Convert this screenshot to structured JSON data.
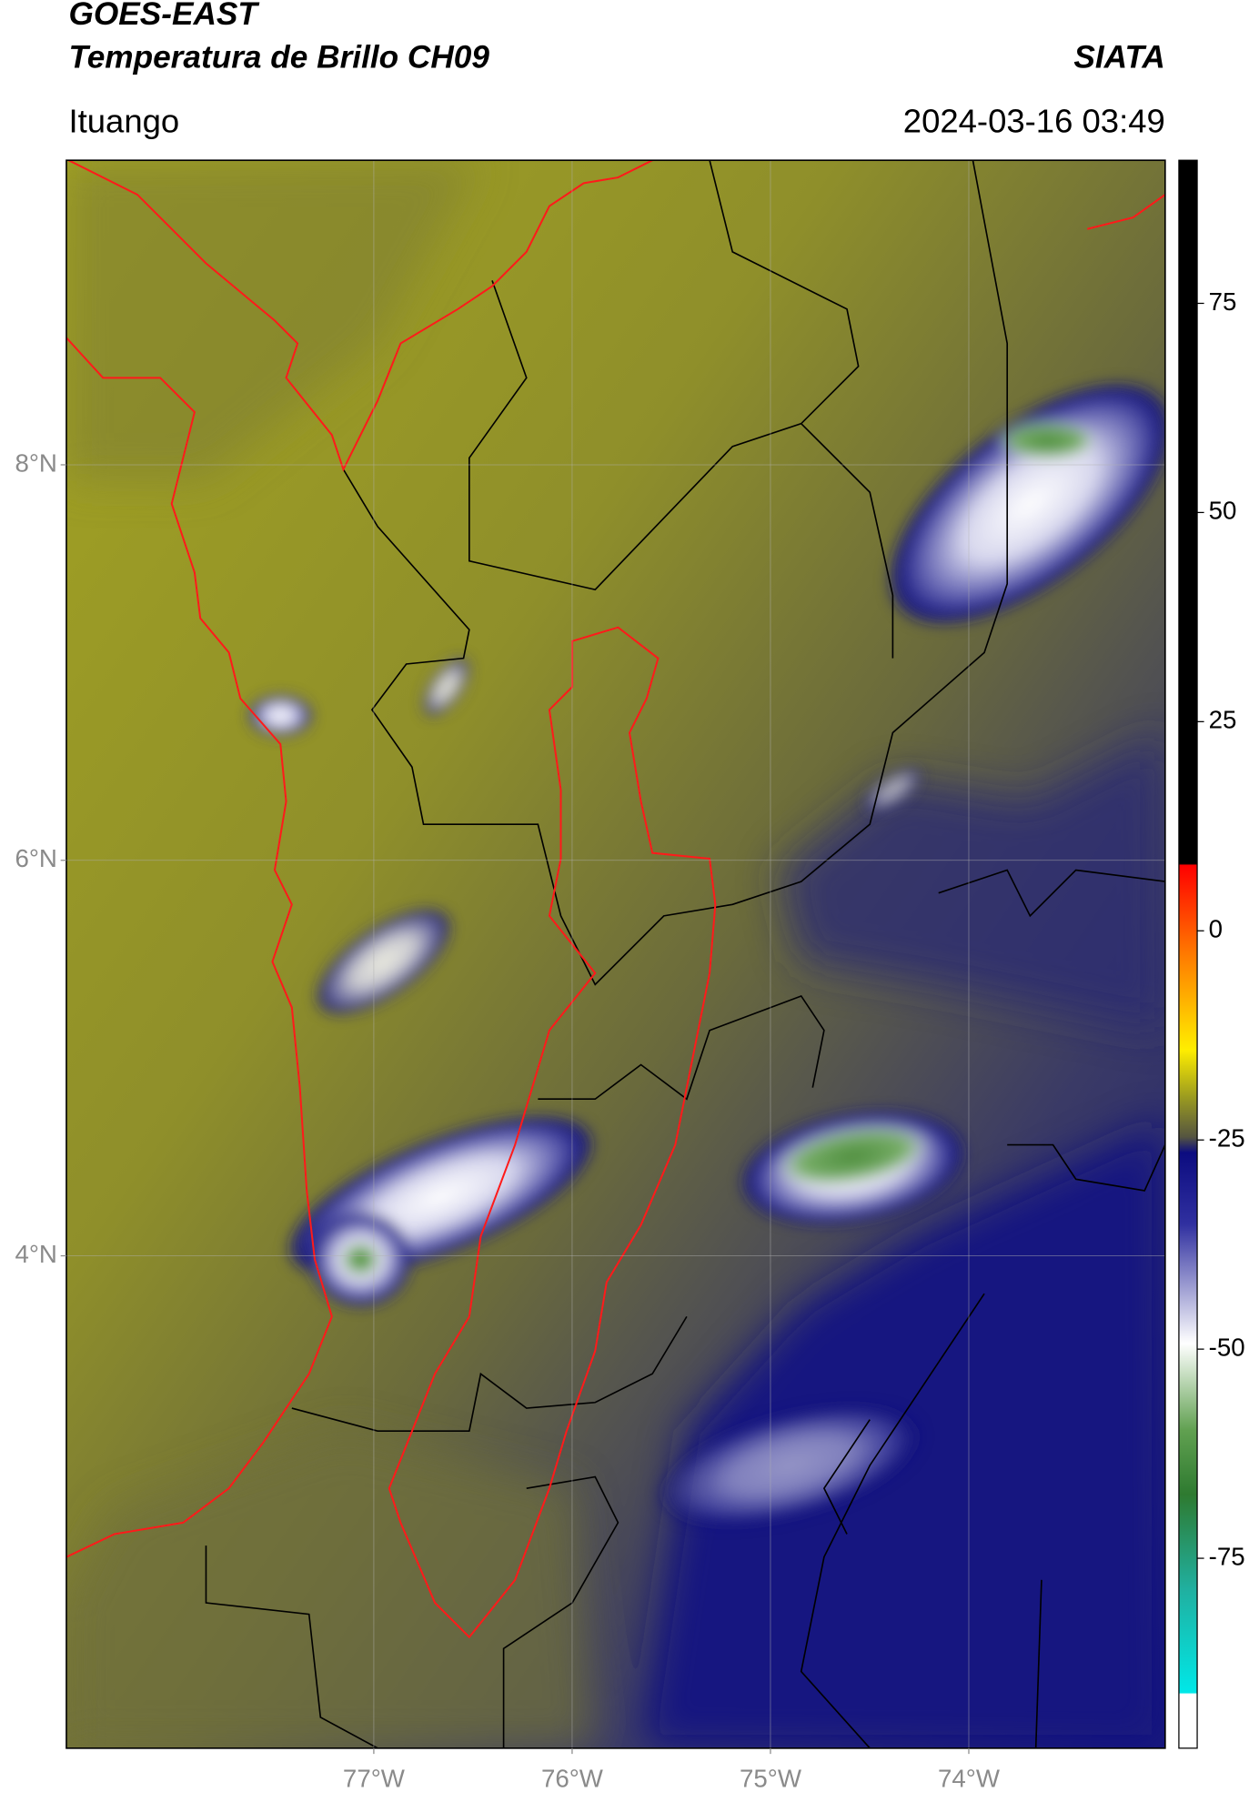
{
  "chart_data": {
    "type": "map",
    "title": "GOES-EAST",
    "subtitle": "Temperatura de Brillo CH09",
    "source": "SIATA",
    "location": "Ituango",
    "datetime": "2024-03-16 03:49",
    "xlim": [
      -78.55,
      -73.01
    ],
    "ylim": [
      1.51,
      9.54
    ],
    "xticks": [
      {
        "value": -77,
        "label": "77°W"
      },
      {
        "value": -76,
        "label": "76°W"
      },
      {
        "value": -75,
        "label": "75°W"
      },
      {
        "value": -74,
        "label": "74°W"
      }
    ],
    "yticks": [
      {
        "value": 8,
        "label": "8°N"
      },
      {
        "value": 6,
        "label": "6°N"
      },
      {
        "value": 4,
        "label": "4°N"
      }
    ],
    "grid": true,
    "colorbar": {
      "lim": [
        -97.7,
        92.1
      ],
      "ticks": [
        75,
        50,
        25,
        0,
        -25,
        -50,
        -75
      ]
    }
  }
}
